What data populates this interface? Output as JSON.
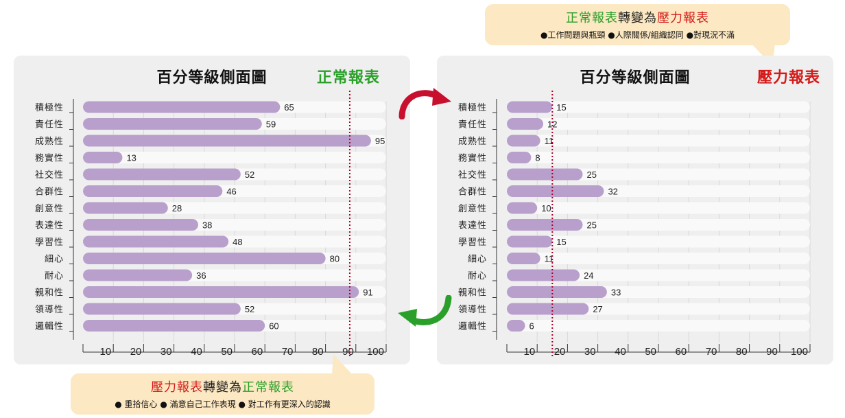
{
  "callout_top": {
    "title_a": "正常報表",
    "title_mid": "轉變為",
    "title_b": "壓力報表",
    "notes": "●工作問題與瓶頸 ●人際關係/組織認同 ●對現況不滿"
  },
  "callout_bottom": {
    "title_a": "壓力報表",
    "title_mid": "轉變為",
    "title_b": "正常報表",
    "notes": "● 重拾信心  ● 滿意自己工作表現  ● 對工作有更深入的認識"
  },
  "colors": {
    "bar": "#b9a0cc",
    "track": "#f9f9f9",
    "normal_green": "#2aa02a",
    "stress_red": "#d41a1a",
    "marker": "#b0002a",
    "arrow_red": "#c8102e",
    "arrow_green": "#2aa02a"
  },
  "chart_data": [
    {
      "type": "bar",
      "orientation": "horizontal",
      "title": "百分等級側面圖",
      "badge": "正常報表",
      "categories": [
        "積極性",
        "責任性",
        "成熟性",
        "務實性",
        "社交性",
        "合群性",
        "創意性",
        "表達性",
        "學習性",
        "細心",
        "耐心",
        "親和性",
        "領導性",
        "邏輯性"
      ],
      "values": [
        65,
        59,
        95,
        13,
        52,
        46,
        28,
        38,
        48,
        80,
        36,
        91,
        52,
        60
      ],
      "xlim": [
        0,
        100
      ],
      "xticks": [
        10,
        20,
        30,
        40,
        50,
        60,
        70,
        80,
        90,
        100
      ],
      "reference_line": 88,
      "grid": true
    },
    {
      "type": "bar",
      "orientation": "horizontal",
      "title": "百分等級側面圖",
      "badge": "壓力報表",
      "categories": [
        "積極性",
        "責任性",
        "成熟性",
        "務實性",
        "社交性",
        "合群性",
        "創意性",
        "表達性",
        "學習性",
        "細心",
        "耐心",
        "親和性",
        "領導性",
        "邏輯性"
      ],
      "values": [
        15,
        12,
        11,
        8,
        25,
        32,
        10,
        25,
        15,
        11,
        24,
        33,
        27,
        6
      ],
      "xlim": [
        0,
        100
      ],
      "xticks": [
        10,
        20,
        30,
        40,
        50,
        60,
        70,
        80,
        90,
        100
      ],
      "reference_line": 15,
      "grid": true
    }
  ]
}
